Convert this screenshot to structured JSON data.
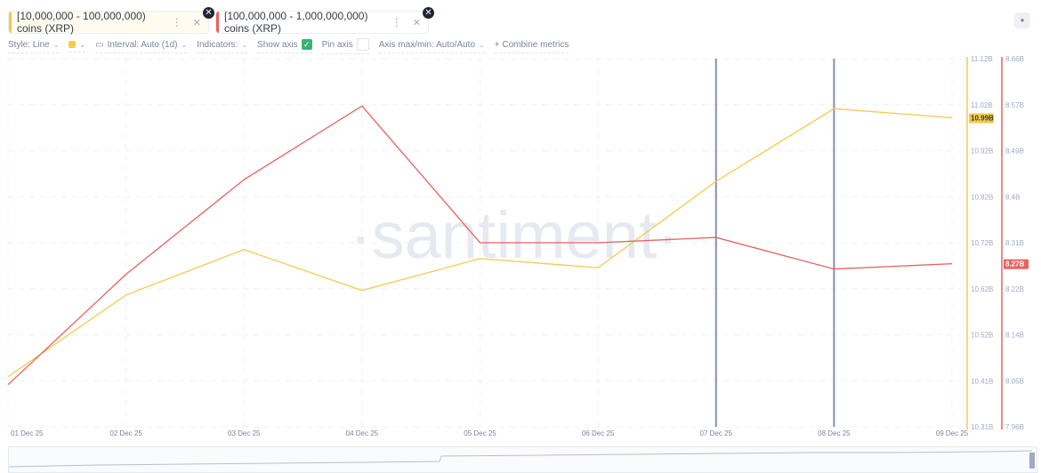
{
  "metrics": [
    {
      "label": "[10,000,000 - 100,000,000) coins (XRP)",
      "color": "#f7c94a"
    },
    {
      "label": "[100,000,000 - 1,000,000,000) coins (XRP)",
      "color": "#e8625f"
    }
  ],
  "toolbar": {
    "style": "Style: Line",
    "interval": "Interval: Auto (1d)",
    "indicators": "Indicators:",
    "show_axis": "Show axis",
    "pin_axis": "Pin axis",
    "axis_maxmin": "Axis max/min: Auto/Auto",
    "combine": "+ Combine metrics"
  },
  "watermark": "·santiment·",
  "chart_data": {
    "type": "line",
    "x": [
      "01 Dec 25",
      "02 Dec 25",
      "03 Dec 25",
      "04 Dec 25",
      "05 Dec 25",
      "06 Dec 25",
      "07 Dec 25",
      "08 Dec 25",
      "09 Dec 25"
    ],
    "series": [
      {
        "name": "[10,000,000 - 100,000,000) coins (XRP)",
        "unit": "B",
        "values": [
          10.42,
          10.6,
          10.7,
          10.61,
          10.68,
          10.66,
          10.85,
          11.01,
          10.99
        ],
        "ylim": [
          10.31,
          11.12
        ],
        "ticks": [
          "11.12B",
          "11.02B",
          "10.92B",
          "10.82B",
          "10.72B",
          "10.62B",
          "10.52B",
          "10.41B",
          "10.31B"
        ],
        "last_label": "10.99B",
        "color": "#f7c94a"
      },
      {
        "name": "[100,000,000 - 1,000,000,000) coins (XRP)",
        "unit": "B",
        "values": [
          8.04,
          8.25,
          8.43,
          8.57,
          8.31,
          8.31,
          8.32,
          8.26,
          8.27
        ],
        "ylim": [
          7.96,
          8.66
        ],
        "ticks": [
          "8.66B",
          "8.57B",
          "8.49B",
          "8.4B",
          "8.31B",
          "8.22B",
          "8.14B",
          "8.05B",
          "7.96B"
        ],
        "last_label": "8.27B",
        "color": "#e8625f"
      }
    ],
    "markers": [
      "07 Dec 25",
      "08 Dec 25"
    ]
  }
}
